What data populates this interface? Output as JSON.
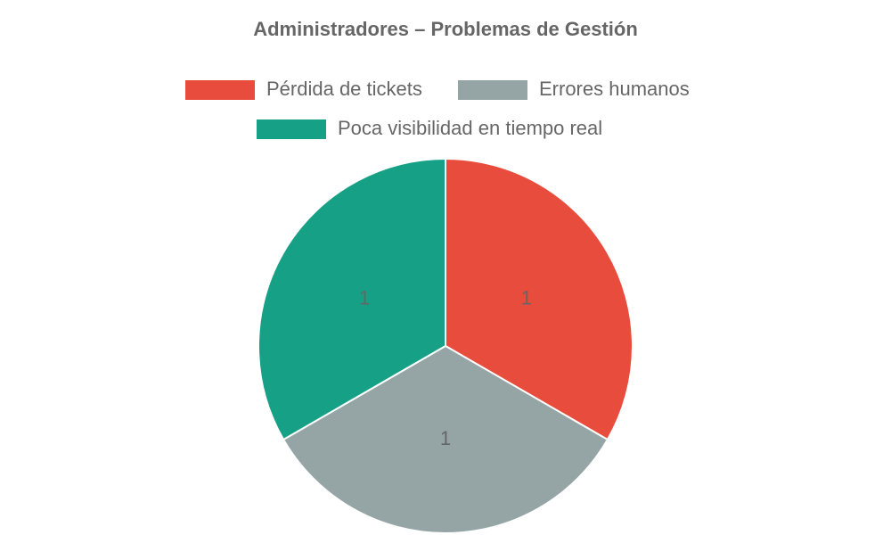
{
  "chart_data": {
    "type": "pie",
    "title": "Administradores – Problemas de Gestión",
    "categories": [
      "Pérdida de tickets",
      "Errores humanos",
      "Poca visibilidad en tiempo real"
    ],
    "values": [
      1,
      1,
      1
    ],
    "colors": [
      "#e74c3c",
      "#95a5a6",
      "#16a085"
    ],
    "legend_position": "top"
  }
}
